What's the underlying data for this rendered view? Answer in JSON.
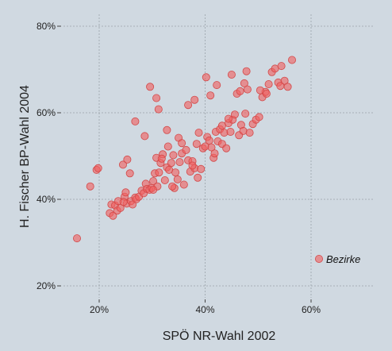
{
  "chart_data": {
    "type": "scatter",
    "title": "",
    "xlabel": "SPÖ NR-Wahl 2002",
    "ylabel": "H. Fischer BP-Wahl 2004",
    "xlim": [
      13,
      71
    ],
    "ylim": [
      17,
      82
    ],
    "x_ticks": [
      20,
      40,
      60
    ],
    "y_ticks": [
      20,
      40,
      60,
      80
    ],
    "x_tick_labels": [
      "20%",
      "40%",
      "60%"
    ],
    "y_tick_labels": [
      "20%",
      "40%",
      "60%",
      "80%"
    ],
    "grid": true,
    "legend_position": "bottom-right",
    "series": [
      {
        "name": "Bezirke",
        "color": "#f06060",
        "x": [
          15.8,
          18.3,
          19.5,
          19.8,
          22.0,
          22.3,
          22.6,
          23.0,
          23.4,
          23.6,
          24.0,
          24.5,
          24.8,
          25.0,
          25.3,
          25.8,
          25.2,
          24.6,
          26.0,
          26.3,
          26.8,
          27.0,
          27.5,
          28.0,
          28.4,
          28.8,
          29.0,
          29.5,
          29.9,
          30.2,
          30.5,
          30.8,
          31.0,
          31.3,
          31.6,
          32.0,
          32.4,
          32.8,
          33.2,
          33.6,
          34.0,
          34.4,
          34.8,
          35.2,
          35.6,
          36.0,
          36.4,
          36.8,
          37.2,
          37.6,
          38.0,
          38.4,
          38.8,
          39.2,
          39.6,
          40.0,
          40.4,
          40.8,
          41.2,
          41.6,
          42.0,
          42.4,
          42.8,
          43.2,
          43.6,
          44.0,
          44.4,
          44.8,
          45.2,
          45.6,
          46.0,
          46.4,
          46.8,
          47.2,
          47.6,
          48.0,
          48.4,
          49.0,
          49.6,
          50.2,
          50.8,
          51.4,
          52.0,
          52.6,
          53.2,
          53.8,
          54.4,
          55.0,
          55.6,
          56.4,
          30.2,
          30.8,
          31.2,
          28.6,
          26.8,
          32.8,
          36.8,
          38.0,
          40.2,
          41.0,
          29.6,
          35.0,
          34.2,
          33.0,
          37.6,
          45.0,
          47.8,
          42.2,
          44.4,
          46.6,
          47.4,
          50.4,
          51.6,
          54.2,
          31.8,
          33.8,
          35.6,
          38.6,
          41.8,
          43.2
        ],
        "y": [
          31.0,
          43.0,
          46.8,
          47.2,
          36.8,
          38.8,
          36.2,
          38.6,
          37.4,
          39.6,
          38.0,
          48.0,
          40.6,
          41.6,
          49.2,
          46.0,
          39.0,
          39.4,
          39.6,
          38.8,
          40.4,
          40.0,
          40.6,
          42.0,
          41.4,
          43.6,
          42.4,
          42.2,
          42.6,
          44.2,
          46.0,
          49.6,
          43.0,
          46.2,
          48.4,
          50.4,
          44.4,
          47.4,
          46.8,
          48.4,
          50.2,
          46.2,
          44.6,
          48.6,
          50.6,
          43.4,
          51.4,
          49.0,
          46.4,
          48.8,
          47.2,
          52.8,
          55.4,
          47.0,
          51.8,
          52.2,
          54.4,
          53.6,
          52.0,
          49.6,
          55.6,
          53.4,
          56.2,
          52.8,
          55.4,
          51.8,
          57.6,
          55.6,
          58.4,
          59.6,
          64.4,
          54.8,
          57.2,
          55.8,
          59.8,
          65.4,
          55.4,
          57.4,
          58.4,
          59.0,
          63.6,
          64.8,
          66.6,
          69.4,
          70.2,
          67.0,
          70.8,
          67.4,
          66.0,
          72.2,
          42.2,
          63.4,
          60.8,
          54.6,
          58.0,
          56.0,
          61.8,
          63.0,
          68.2,
          64.0,
          66.0,
          54.2,
          42.6,
          52.2,
          47.8,
          68.8,
          69.6,
          66.4,
          58.6,
          65.0,
          66.8,
          65.2,
          64.4,
          66.2,
          49.4,
          43.0,
          53.0,
          45.0,
          50.6,
          57.0
        ]
      }
    ]
  }
}
